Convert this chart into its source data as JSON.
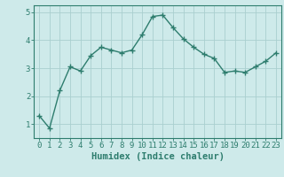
{
  "x": [
    0,
    1,
    2,
    3,
    4,
    5,
    6,
    7,
    8,
    9,
    10,
    11,
    12,
    13,
    14,
    15,
    16,
    17,
    18,
    19,
    20,
    21,
    22,
    23
  ],
  "y": [
    1.3,
    0.85,
    2.2,
    3.05,
    2.9,
    3.45,
    3.75,
    3.65,
    3.55,
    3.65,
    4.2,
    4.85,
    4.9,
    4.45,
    4.05,
    3.75,
    3.5,
    3.35,
    2.85,
    2.9,
    2.85,
    3.05,
    3.25,
    3.55
  ],
  "line_color": "#2e7d6e",
  "marker": "+",
  "marker_size": 4,
  "linewidth": 1.0,
  "xlabel": "Humidex (Indice chaleur)",
  "ylim": [
    0.5,
    5.25
  ],
  "xlim": [
    -0.5,
    23.5
  ],
  "yticks": [
    1,
    2,
    3,
    4,
    5
  ],
  "xticks": [
    0,
    1,
    2,
    3,
    4,
    5,
    6,
    7,
    8,
    9,
    10,
    11,
    12,
    13,
    14,
    15,
    16,
    17,
    18,
    19,
    20,
    21,
    22,
    23
  ],
  "bg_color": "#ceeaea",
  "grid_color": "#aacfcf",
  "tick_color": "#2e7d6e",
  "label_color": "#2e7d6e",
  "xlabel_fontsize": 7.5,
  "tick_fontsize": 6.5
}
